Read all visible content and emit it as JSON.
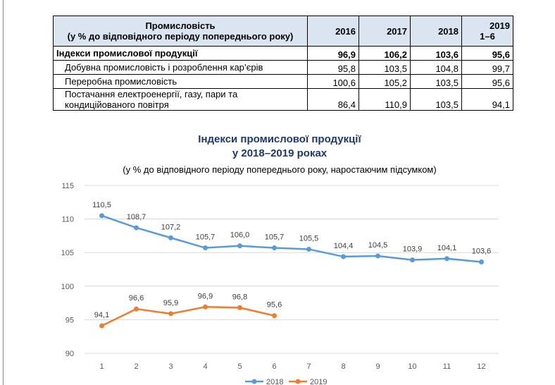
{
  "table": {
    "header": {
      "title": "Промисловість",
      "subtitle": "(у % до відповідного періоду попереднього року)",
      "years": [
        "2016",
        "2017",
        "2018",
        "2019"
      ],
      "period": "1–6"
    },
    "rows": [
      [
        "Індекси промислової продукції",
        "96,9",
        "106,2",
        "103,6",
        "95,6"
      ],
      [
        "Добувна промисловість і розроблення кар’єрів",
        "95,8",
        "103,5",
        "104,8",
        "99,7"
      ],
      [
        "Переробна промисловість",
        "100,6",
        "105,2",
        "103,5",
        "95,6"
      ],
      [
        "Постачання електроенергії, газу, пари та кондиційованого повітря",
        "86,4",
        "110,9",
        "103,5",
        "94,1"
      ]
    ]
  },
  "chart_data": {
    "type": "line",
    "title": "Індекси промислової продукції",
    "title2": "у 2018–2019 роках",
    "subtitle": "(у % до відповідного періоду попереднього року, наростаючим підсумком)",
    "categories": [
      1,
      2,
      3,
      4,
      5,
      6,
      7,
      8,
      9,
      10,
      11,
      12
    ],
    "ylim": [
      90,
      115
    ],
    "yticks": [
      90,
      95,
      100,
      105,
      110,
      115
    ],
    "grid": true,
    "legend": "bottom",
    "series": [
      {
        "name": "2018",
        "color": "#5b9bd5",
        "values": [
          110.5,
          108.7,
          107.2,
          105.7,
          106.0,
          105.7,
          105.5,
          104.4,
          104.5,
          103.9,
          104.1,
          103.6
        ],
        "value_labels": [
          "110,5",
          "108,7",
          "107,2",
          "105,7",
          "106,0",
          "105,7",
          "105,5",
          "104,4",
          "104,5",
          "103,9",
          "104,1",
          "103,6"
        ]
      },
      {
        "name": "2019",
        "color": "#ed7d31",
        "values": [
          94.1,
          96.6,
          95.9,
          96.9,
          96.8,
          95.6,
          null,
          null,
          null,
          null,
          null,
          null
        ],
        "value_labels": [
          "94,1",
          "96,6",
          "95,9",
          "96,9",
          "96,8",
          "95,6",
          null,
          null,
          null,
          null,
          null,
          null
        ]
      }
    ]
  }
}
